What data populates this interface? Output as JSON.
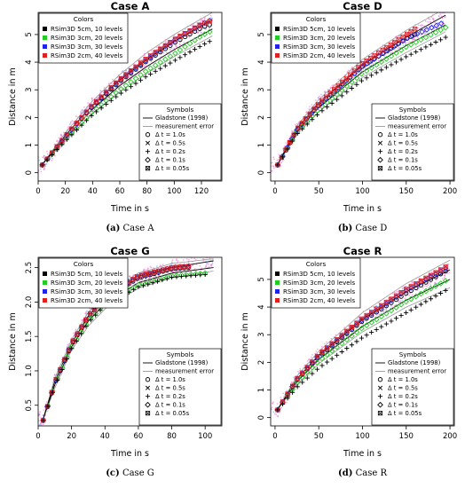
{
  "colors": {
    "rsim5cm": "#000000",
    "rsim3cm": "#22cc22",
    "rsim3cm30": "#2222ee",
    "rsim2cm": "#dd2222",
    "gladstone": "#000000",
    "measurement_error": "#999999",
    "measurement_scatter": "#ff66cc",
    "scatter_blue": "#66aaff"
  },
  "legend": {
    "colors_title": "Colors",
    "series_labels": [
      "RSim3D 5cm, 10 levels",
      "RSim3D 3cm, 20 levels",
      "RSim3D 3cm, 30 levels",
      "RSim3D 2cm, 40 levels"
    ],
    "symbols_title": "Symbols",
    "line_labels": [
      "Gladstone (1998)",
      "measurement error"
    ],
    "symbol_labels": [
      "Δ t = 1.0s",
      "Δ t = 0.5s",
      "Δ t = 0.2s",
      "Δ t = 0.1s",
      "Δ t = 0.05s"
    ],
    "symbol_icons": [
      "circle-icon",
      "cross-icon",
      "plus-icon",
      "diamond-icon",
      "boxed-x-icon"
    ]
  },
  "chart_data": [
    {
      "type": "scatter",
      "title": "Case A",
      "caption_letter": "(a)",
      "caption_text": "Case A",
      "xlabel": "Time in s",
      "ylabel": "Distance in m",
      "xlim": [
        0,
        135
      ],
      "ylim": [
        -0.3,
        5.8
      ],
      "xticks": [
        0,
        20,
        40,
        60,
        80,
        100,
        120
      ],
      "yticks": [
        0,
        1,
        2,
        3,
        4,
        5
      ],
      "xmax": 128,
      "gladstone_lines": [
        {
          "x": [
            3,
            20,
            40,
            60,
            80,
            100,
            128
          ],
          "y": [
            0.3,
            1.35,
            2.45,
            3.35,
            4.1,
            4.75,
            5.55
          ]
        },
        {
          "x": [
            3,
            20,
            40,
            60,
            80,
            100,
            128
          ],
          "y": [
            0.3,
            1.25,
            2.3,
            3.15,
            3.85,
            4.45,
            5.2
          ]
        }
      ],
      "measurement_error_lines": [
        {
          "x": [
            3,
            20,
            40,
            60,
            80,
            100,
            128
          ],
          "y": [
            0.3,
            1.45,
            2.6,
            3.55,
            4.35,
            5.0,
            5.8
          ]
        },
        {
          "x": [
            3,
            20,
            40,
            60,
            80,
            100,
            128
          ],
          "y": [
            0.3,
            1.15,
            2.15,
            2.95,
            3.6,
            4.2,
            4.95
          ]
        }
      ],
      "series": [
        {
          "x": [
            3,
            20,
            40,
            60,
            80,
            100,
            120,
            126
          ],
          "y": [
            0.28,
            1.3,
            2.4,
            3.3,
            4.05,
            4.7,
            5.25,
            5.35
          ]
        },
        {
          "x": [
            3,
            20,
            40,
            60,
            80,
            100,
            120,
            126
          ],
          "y": [
            0.28,
            1.2,
            2.2,
            3.0,
            3.7,
            4.3,
            4.95,
            5.1
          ]
        },
        {
          "x": [
            3,
            20,
            40,
            60,
            80,
            100,
            120,
            126
          ],
          "y": [
            0.28,
            1.3,
            2.42,
            3.35,
            4.1,
            4.8,
            5.35,
            5.5
          ]
        },
        {
          "x": [
            3,
            20,
            40,
            60,
            80,
            100,
            120,
            126
          ],
          "y": [
            0.28,
            1.32,
            2.45,
            3.38,
            4.15,
            4.82,
            5.38,
            5.48
          ]
        },
        {
          "x": [
            3,
            20,
            40,
            60,
            80,
            100,
            120,
            126
          ],
          "y": [
            0.28,
            1.15,
            2.1,
            2.85,
            3.5,
            4.05,
            4.6,
            4.75
          ]
        }
      ]
    },
    {
      "type": "scatter",
      "title": "Case D",
      "caption_letter": "(b)",
      "caption_text": "Case D",
      "xlabel": "Time in s",
      "ylabel": "Distance in m",
      "xlim": [
        -5,
        205
      ],
      "ylim": [
        -0.3,
        5.8
      ],
      "xticks": [
        0,
        50,
        100,
        150,
        200
      ],
      "yticks": [
        0,
        1,
        2,
        3,
        4,
        5
      ],
      "xmax": 195,
      "gladstone_lines": [
        {
          "x": [
            3,
            25,
            50,
            100,
            150,
            195
          ],
          "y": [
            0.3,
            1.6,
            2.5,
            3.9,
            4.9,
            5.7
          ]
        },
        {
          "x": [
            3,
            25,
            50,
            100,
            150,
            195
          ],
          "y": [
            0.3,
            1.5,
            2.35,
            3.65,
            4.6,
            5.35
          ]
        }
      ],
      "measurement_error_lines": [
        {
          "x": [
            3,
            25,
            50,
            100,
            150,
            195
          ],
          "y": [
            0.3,
            1.7,
            2.65,
            4.1,
            5.15,
            5.95
          ]
        },
        {
          "x": [
            3,
            25,
            50,
            100,
            150,
            195
          ],
          "y": [
            0.3,
            1.4,
            2.2,
            3.45,
            4.35,
            5.1
          ]
        }
      ],
      "series": [
        {
          "x": [
            3,
            25,
            50,
            100,
            150,
            160
          ],
          "y": [
            0.28,
            1.55,
            2.45,
            3.85,
            4.85,
            5.0
          ]
        },
        {
          "x": [
            3,
            25,
            50,
            100,
            150,
            195
          ],
          "y": [
            0.28,
            1.45,
            2.3,
            3.6,
            4.55,
            5.25
          ]
        },
        {
          "x": [
            3,
            25,
            50,
            100,
            150,
            190
          ],
          "y": [
            0.28,
            1.55,
            2.45,
            3.85,
            4.85,
            5.4
          ]
        },
        {
          "x": [
            3,
            25,
            50,
            100,
            150,
            160
          ],
          "y": [
            0.28,
            1.58,
            2.5,
            3.95,
            5.0,
            5.2
          ]
        },
        {
          "x": [
            3,
            25,
            50,
            100,
            150,
            195
          ],
          "y": [
            0.28,
            1.4,
            2.15,
            3.35,
            4.2,
            4.9
          ]
        }
      ]
    },
    {
      "type": "scatter",
      "title": "Case G",
      "caption_letter": "(c)",
      "caption_text": "Case G",
      "xlabel": "Time in s",
      "ylabel": "Distance in m",
      "xlim": [
        0,
        110
      ],
      "ylim": [
        0.2,
        2.65
      ],
      "xticks": [
        0,
        20,
        40,
        60,
        80,
        100
      ],
      "yticks": [
        0.5,
        1.0,
        1.5,
        2.0,
        2.5
      ],
      "xmax": 105,
      "gladstone_lines": [
        {
          "x": [
            3,
            10,
            20,
            30,
            40,
            60,
            80,
            105
          ],
          "y": [
            0.3,
            0.85,
            1.4,
            1.8,
            2.05,
            2.35,
            2.5,
            2.6
          ]
        },
        {
          "x": [
            3,
            10,
            20,
            30,
            40,
            60,
            80,
            105
          ],
          "y": [
            0.3,
            0.8,
            1.35,
            1.72,
            1.98,
            2.28,
            2.42,
            2.5
          ]
        }
      ],
      "measurement_error_lines": [
        {
          "x": [
            3,
            10,
            20,
            30,
            40,
            60,
            80,
            105
          ],
          "y": [
            0.3,
            0.9,
            1.45,
            1.85,
            2.12,
            2.42,
            2.56,
            2.63
          ]
        },
        {
          "x": [
            3,
            10,
            20,
            30,
            40,
            60,
            80,
            105
          ],
          "y": [
            0.3,
            0.75,
            1.3,
            1.65,
            1.9,
            2.2,
            2.35,
            2.45
          ]
        }
      ],
      "series": [
        {
          "x": [
            3,
            10,
            20,
            30,
            40,
            60,
            80,
            90
          ],
          "y": [
            0.28,
            0.82,
            1.38,
            1.78,
            2.05,
            2.35,
            2.48,
            2.5
          ]
        },
        {
          "x": [
            3,
            10,
            20,
            30,
            40,
            60,
            80,
            100
          ],
          "y": [
            0.28,
            0.8,
            1.35,
            1.72,
            1.98,
            2.25,
            2.38,
            2.42
          ]
        },
        {
          "x": [
            3,
            10,
            20,
            30,
            40,
            60,
            80,
            90
          ],
          "y": [
            0.28,
            0.83,
            1.4,
            1.8,
            2.07,
            2.37,
            2.5,
            2.52
          ]
        },
        {
          "x": [
            3,
            10,
            20,
            30,
            40,
            60,
            80,
            90
          ],
          "y": [
            0.28,
            0.84,
            1.4,
            1.8,
            2.08,
            2.38,
            2.5,
            2.52
          ]
        },
        {
          "x": [
            3,
            10,
            20,
            30,
            40,
            60,
            80,
            100
          ],
          "y": [
            0.28,
            0.78,
            1.32,
            1.7,
            1.95,
            2.22,
            2.36,
            2.4
          ]
        }
      ]
    },
    {
      "type": "scatter",
      "title": "Case R",
      "caption_letter": "(d)",
      "caption_text": "Case R",
      "xlabel": "Time in s",
      "ylabel": "Distance in m",
      "xlim": [
        -5,
        205
      ],
      "ylim": [
        -0.3,
        5.8
      ],
      "xticks": [
        0,
        50,
        100,
        150,
        200
      ],
      "yticks": [
        0,
        1,
        2,
        3,
        4,
        5
      ],
      "xmax": 200,
      "gladstone_lines": [
        {
          "x": [
            3,
            25,
            50,
            100,
            150,
            200
          ],
          "y": [
            0.3,
            1.4,
            2.25,
            3.55,
            4.55,
            5.35
          ]
        },
        {
          "x": [
            3,
            25,
            50,
            100,
            150,
            200
          ],
          "y": [
            0.3,
            1.3,
            2.1,
            3.3,
            4.25,
            5.0
          ]
        }
      ],
      "measurement_error_lines": [
        {
          "x": [
            3,
            25,
            50,
            100,
            150,
            200
          ],
          "y": [
            0.3,
            1.5,
            2.4,
            3.8,
            4.85,
            5.7
          ]
        },
        {
          "x": [
            3,
            25,
            50,
            100,
            150,
            200
          ],
          "y": [
            0.3,
            1.2,
            1.95,
            3.1,
            4.0,
            4.7
          ]
        }
      ],
      "series": [
        {
          "x": [
            3,
            25,
            50,
            100,
            150,
            195
          ],
          "y": [
            0.28,
            1.35,
            2.2,
            3.5,
            4.5,
            5.3
          ]
        },
        {
          "x": [
            3,
            25,
            50,
            100,
            150,
            195
          ],
          "y": [
            0.28,
            1.25,
            2.05,
            3.25,
            4.2,
            4.95
          ]
        },
        {
          "x": [
            3,
            25,
            50,
            100,
            150,
            195
          ],
          "y": [
            0.28,
            1.38,
            2.25,
            3.55,
            4.6,
            5.4
          ]
        },
        {
          "x": [
            3,
            25,
            50,
            100,
            150,
            195
          ],
          "y": [
            0.28,
            1.4,
            2.28,
            3.6,
            4.65,
            5.45
          ]
        },
        {
          "x": [
            3,
            25,
            50,
            100,
            150,
            195
          ],
          "y": [
            0.28,
            1.1,
            1.8,
            2.9,
            3.8,
            4.6
          ]
        }
      ]
    }
  ]
}
